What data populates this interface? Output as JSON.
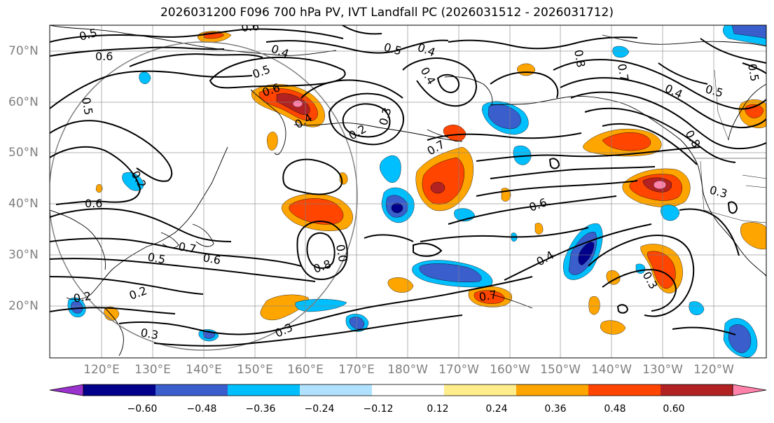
{
  "title": "2026031200 F096 700 hPa PV, IVT Landfall PC (2026031512 - 2026031712)",
  "lon_labels": [
    "120°E",
    "130°E",
    "140°E",
    "150°E",
    "160°E",
    "170°E",
    "180°W",
    "170°W",
    "160°W",
    "150°W",
    "140°W",
    "130°W",
    "120°W"
  ],
  "lat_labels": [
    "70°N",
    "60°N",
    "50°N",
    "40°N",
    "30°N",
    "20°N"
  ],
  "colorbar": {
    "colors": [
      "#9a32cd",
      "#00008b",
      "#3a5fcd",
      "#00bfff",
      "#b0e2ff",
      "#ffffff",
      "#ffec8b",
      "#ffa500",
      "#ff4500",
      "#b22222",
      "#ff82ab"
    ],
    "tick_labels": [
      "−0.60",
      "−0.48",
      "−0.36",
      "−0.24",
      "−0.12",
      "0.12",
      "0.24",
      "0.36",
      "0.48",
      "0.60"
    ]
  },
  "contour_labels": [
    "0.6",
    "0.6",
    "0.5",
    "0.4",
    "0.5",
    "0.4",
    "0.5",
    "0.5",
    "0.6",
    "0.4",
    "0.2",
    "0.3",
    "0.7",
    "0.4",
    "0.7",
    "0.6",
    "0.7",
    "0.5",
    "0.6",
    "0.2",
    "0.8",
    "0.0",
    "0.6",
    "0.4",
    "0.2",
    "0.3",
    "0.2",
    "0.3",
    "0.7",
    "0.4",
    "0.5",
    "0.8",
    "0.8",
    "0.3",
    "0.5",
    "0.3"
  ]
}
